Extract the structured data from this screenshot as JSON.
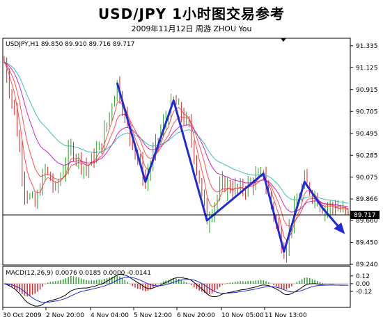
{
  "page": {
    "title": "USD/JPY 1小时图交易参考",
    "subtitle": "2009年11月12日   周游 ZHOU You"
  },
  "chart_data": {
    "type": "candlestick",
    "symbol_label": "USDJPY,H1  89.850 89.910 89.716 89.717",
    "macd_label": "MACD(12,26,9) 0.0076 0.0185 0.0000 -0.0141",
    "price_ylim": [
      89.24,
      91.4
    ],
    "price_ticks": [
      "91.335",
      "91.125",
      "90.915",
      "90.705",
      "90.495",
      "90.285",
      "90.075",
      "89.866",
      "89.660",
      "89.450",
      "89.240"
    ],
    "current_price": "89.717",
    "macd_ylim": [
      -0.36,
      0.26
    ],
    "macd_ticks": [
      "0.12",
      "0.00",
      "-0.12"
    ],
    "x_labels": [
      "30 Oct 2009",
      "2 Nov 20:00",
      "4 Nov 04:00",
      "5 Nov 12:00",
      "6 Nov 20:00",
      "10 Nov 05:00",
      "11 Nov 13:00"
    ],
    "zigzag_pattern": [
      {
        "t": 44,
        "price": 90.98
      },
      {
        "t": 55,
        "price": 90.03
      },
      {
        "t": 66,
        "price": 90.81
      },
      {
        "t": 79,
        "price": 89.66
      },
      {
        "t": 101,
        "price": 90.11
      },
      {
        "t": 109,
        "price": 89.36
      },
      {
        "t": 117,
        "price": 90.03
      },
      {
        "t": 124,
        "price": 89.78
      },
      {
        "t": 132,
        "price": 89.55
      }
    ],
    "colors": {
      "bull": "#2ca02c",
      "bear": "#d62728",
      "zigzag": "#1f2bd6",
      "ma_fast": "#ff3030",
      "ma_mid": "#c000c0",
      "ma_slow": "#20b0b0"
    }
  }
}
